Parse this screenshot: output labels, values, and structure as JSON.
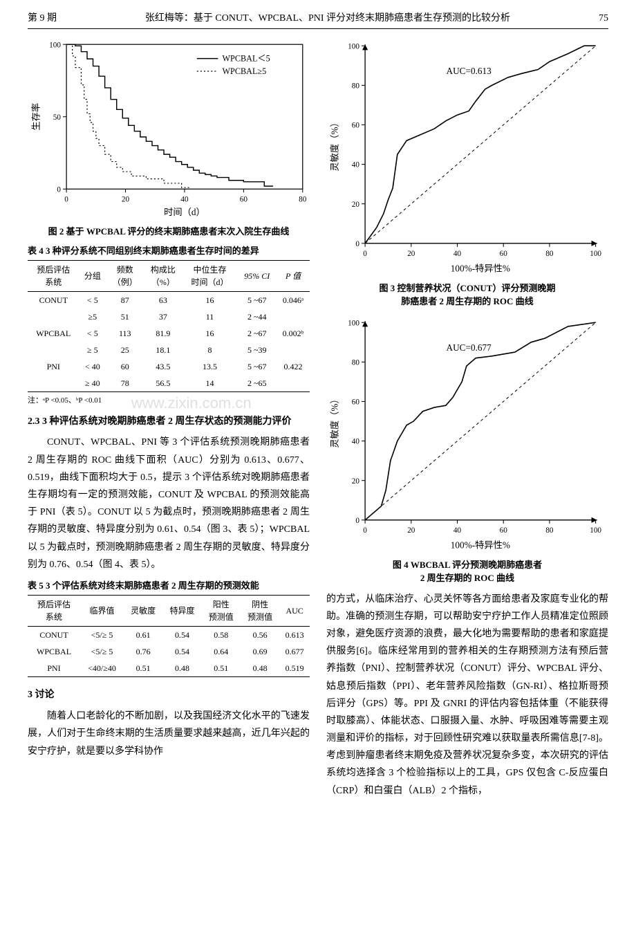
{
  "header": {
    "issue": "第 9 期",
    "title": "张红梅等：基于 CONUT、WPCBAL、PNI 评分对终末期肺癌患者生存预测的比较分析",
    "page": "75"
  },
  "fig2": {
    "caption": "图 2  基于 WPCBAL 评分的终末期肺癌患者末次入院生存曲线",
    "type": "survival-curve",
    "x_label": "时间（d）",
    "y_label": "生存率",
    "xlim": [
      0,
      80
    ],
    "xtick_step": 20,
    "ylim": [
      0,
      100
    ],
    "ytick_step": 50,
    "legend": [
      "WPCBAL＜5",
      "WPCBAL≥5"
    ],
    "line_colors": [
      "#000000",
      "#000000"
    ],
    "line_styles": [
      "solid",
      "dotted"
    ],
    "series1": [
      [
        0,
        100
      ],
      [
        3,
        99
      ],
      [
        5,
        95
      ],
      [
        7,
        90
      ],
      [
        9,
        85
      ],
      [
        11,
        78
      ],
      [
        13,
        70
      ],
      [
        15,
        62
      ],
      [
        17,
        55
      ],
      [
        19,
        49
      ],
      [
        21,
        44
      ],
      [
        23,
        40
      ],
      [
        25,
        36
      ],
      [
        27,
        33
      ],
      [
        29,
        30
      ],
      [
        31,
        27
      ],
      [
        33,
        24
      ],
      [
        35,
        22
      ],
      [
        37,
        19
      ],
      [
        39,
        17
      ],
      [
        41,
        15
      ],
      [
        43,
        13
      ],
      [
        45,
        11
      ],
      [
        47,
        10
      ],
      [
        49,
        9
      ],
      [
        51,
        8
      ],
      [
        55,
        6
      ],
      [
        60,
        5
      ],
      [
        67,
        2
      ]
    ],
    "series2": [
      [
        0,
        100
      ],
      [
        2,
        92
      ],
      [
        3,
        84
      ],
      [
        5,
        72
      ],
      [
        6,
        62
      ],
      [
        7,
        52
      ],
      [
        8,
        46
      ],
      [
        9,
        40
      ],
      [
        10,
        35
      ],
      [
        11,
        30
      ],
      [
        13,
        24
      ],
      [
        15,
        19
      ],
      [
        17,
        15
      ],
      [
        19,
        12
      ],
      [
        22,
        9
      ],
      [
        27,
        7
      ],
      [
        33,
        4
      ],
      [
        39,
        1
      ]
    ],
    "background_color": "#ffffff",
    "axis_color": "#000000",
    "font_size": 11
  },
  "fig3": {
    "caption_line1": "图 3  控制营养状况（CONUT）评分预测晚期",
    "caption_line2": "肺癌患者 2 周生存期的 ROC 曲线",
    "type": "roc",
    "x_label": "100%-特异性%",
    "y_label": "灵敏度（%）",
    "xlim": [
      0,
      100
    ],
    "xtick_step": 20,
    "ylim": [
      0,
      100
    ],
    "ytick_step": 20,
    "auc_label": "AUC=0.613",
    "curve": [
      [
        0,
        0
      ],
      [
        5,
        8
      ],
      [
        8,
        15
      ],
      [
        10,
        22
      ],
      [
        12,
        28
      ],
      [
        14,
        45
      ],
      [
        18,
        52
      ],
      [
        24,
        55
      ],
      [
        30,
        58
      ],
      [
        35,
        62
      ],
      [
        40,
        65
      ],
      [
        45,
        67
      ],
      [
        48,
        72
      ],
      [
        52,
        78
      ],
      [
        55,
        80
      ],
      [
        62,
        84
      ],
      [
        68,
        86
      ],
      [
        75,
        88
      ],
      [
        80,
        92
      ],
      [
        88,
        96
      ],
      [
        95,
        100
      ],
      [
        100,
        100
      ]
    ],
    "diagonal": [
      [
        0,
        0
      ],
      [
        100,
        100
      ]
    ],
    "line_color": "#000000",
    "diagonal_style": "dashed",
    "background_color": "#ffffff",
    "axis_color": "#000000",
    "font_size": 11
  },
  "fig4": {
    "caption_line1": "图 4  WBCBAL 评分预测晚期肺癌患者",
    "caption_line2": "2 周生存期的 ROC 曲线",
    "type": "roc",
    "x_label": "100%-特异性%",
    "y_label": "灵敏度（%）",
    "xlim": [
      0,
      100
    ],
    "xtick_step": 20,
    "ylim": [
      0,
      100
    ],
    "ytick_step": 20,
    "auc_label": "AUC=0.677",
    "curve": [
      [
        0,
        0
      ],
      [
        7,
        7
      ],
      [
        9,
        15
      ],
      [
        11,
        30
      ],
      [
        14,
        40
      ],
      [
        18,
        48
      ],
      [
        21,
        50
      ],
      [
        25,
        55
      ],
      [
        30,
        57
      ],
      [
        35,
        58
      ],
      [
        38,
        62
      ],
      [
        42,
        70
      ],
      [
        44,
        78
      ],
      [
        48,
        82
      ],
      [
        55,
        83
      ],
      [
        65,
        85
      ],
      [
        72,
        90
      ],
      [
        78,
        92
      ],
      [
        88,
        98
      ],
      [
        100,
        100
      ]
    ],
    "diagonal": [
      [
        0,
        0
      ],
      [
        100,
        100
      ]
    ],
    "line_color": "#000000",
    "diagonal_style": "dashed",
    "background_color": "#ffffff",
    "axis_color": "#000000",
    "font_size": 11
  },
  "table4": {
    "caption": "表 4  3 种评分系统不同组别终末期肺癌患者生存时间的差异",
    "columns": [
      "预后评估系统",
      "分组",
      "频数（例）",
      "构成比（%）",
      "中位生存时间（d）",
      "95% CI",
      "P 值"
    ],
    "col1": "预后评估",
    "col1b": "系统",
    "col2": "分组",
    "col3a": "频数",
    "col3b": "（例）",
    "col4a": "构成比",
    "col4b": "（%）",
    "col5a": "中位生存",
    "col5b": "时间（d）",
    "col6": "95% CI",
    "col7": "P 值",
    "rows": [
      [
        "CONUT",
        "< 5",
        "87",
        "63",
        "16",
        "5 ~67",
        "0.046ᵃ"
      ],
      [
        "",
        "≥5",
        "51",
        "37",
        "11",
        "2 ~44",
        ""
      ],
      [
        "WPCBAL",
        "< 5",
        "113",
        "81.9",
        "16",
        "2 ~67",
        "0.002ᵇ"
      ],
      [
        "",
        "≥ 5",
        "25",
        "18.1",
        "8",
        "5 ~39",
        ""
      ],
      [
        "PNI",
        "< 40",
        "60",
        "43.5",
        "13.5",
        "5 ~67",
        "0.422"
      ],
      [
        "",
        "≥ 40",
        "78",
        "56.5",
        "14",
        "2 ~65",
        ""
      ]
    ],
    "footnote": "注：ᵃP <0.05、ᵇP <0.01"
  },
  "table5": {
    "caption": "表 5  3 个评估系统对终末期肺癌患者 2 周生存期的预测效能",
    "col1": "预后评估",
    "col1b": "系统",
    "col2": "临界值",
    "col3": "灵敏度",
    "col4": "特异度",
    "col5a": "阳性",
    "col5b": "预测值",
    "col6a": "阴性",
    "col6b": "预测值",
    "col7": "AUC",
    "rows": [
      [
        "CONUT",
        "<5/≥ 5",
        "0.61",
        "0.54",
        "0.58",
        "0.56",
        "0.613"
      ],
      [
        "WPCBAL",
        "<5/≥ 5",
        "0.76",
        "0.54",
        "0.64",
        "0.69",
        "0.677"
      ],
      [
        "PNI",
        "<40/≥40",
        "0.51",
        "0.48",
        "0.51",
        "0.48",
        "0.519"
      ]
    ]
  },
  "section23": {
    "heading": "2.3  3 种评估系统对晚期肺癌患者 2 周生存状态的预测能力评价",
    "para": "CONUT、WPCBAL、PNI 等 3 个评估系统预测晚期肺癌患者 2 周生存期的 ROC 曲线下面积（AUC）分别为 0.613、0.677、0.519，曲线下面积均大于 0.5，提示 3 个评估系统对晚期肺癌患者生存期均有一定的预测效能，CONUT 及 WPCBAL 的预测效能高于 PNI（表 5）。CONUT 以 5 为截点时，预测晚期肺癌患者 2 周生存期的灵敏度、特异度分别为 0.61、0.54（图 3、表 5）；WPCBAL 以 5 为截点时，预测晚期肺癌患者 2 周生存期的灵敏度、特异度分别为 0.76、0.54（图 4、表 5）。"
  },
  "section3": {
    "heading": "3  讨论",
    "para_left": "随着人口老龄化的不断加剧，以及我国经济文化水平的飞速发展，人们对于生命终末期的生活质量要求越来越高，近几年兴起的安宁疗护，就是要以多学科协作",
    "para_right": "的方式，从临床治疗、心灵关怀等各方面给患者及家庭专业化的帮助。准确的预测生存期，可以帮助安宁疗护工作人员精准定位照顾对象，避免医疗资源的浪费，最大化地为需要帮助的患者和家庭提供服务[6]。临床经常用到的营养相关的生存期预测方法有预后营养指数（PNI）、控制营养状况（CONUT）评分、WPCBAL 评分、姑息预后指数（PPI）、老年营养风险指数（GN-RI）、格拉斯哥预后评分（GPS）等。PPI 及 GNRI 的评估内容包括体重（不能获得时取膝高）、体能状态、口服摄入量、水肿、呼吸困难等需要主观测量和评价的指标，对于回顾性研究难以获取量表所需信息[7-8]。考虑到肿瘤患者终末期免疫及营养状况复杂多变，本次研究的评估系统均选择含 3 个检验指标以上的工具，GPS 仅包含 C-反应蛋白（CRP）和白蛋白（ALB）2 个指标，"
  },
  "watermark": "www.zixin.com.cn"
}
